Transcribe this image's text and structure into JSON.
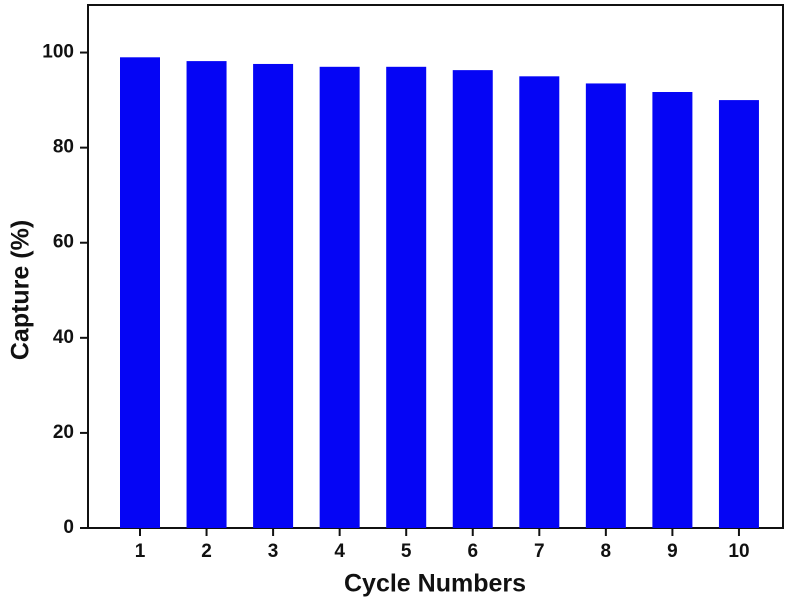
{
  "chart_data": {
    "type": "bar",
    "x_label": "Cycle Numbers",
    "y_label": "Capture (%)",
    "categories": [
      "1",
      "2",
      "3",
      "4",
      "5",
      "6",
      "7",
      "8",
      "9",
      "10"
    ],
    "values": [
      99,
      98.2,
      97.6,
      97,
      97,
      96.3,
      95,
      93.5,
      91.7,
      90
    ],
    "color": "#0505f5",
    "ylim": [
      0,
      110
    ],
    "yticks": [
      0,
      20,
      40,
      60,
      80,
      100
    ],
    "grid": false
  }
}
